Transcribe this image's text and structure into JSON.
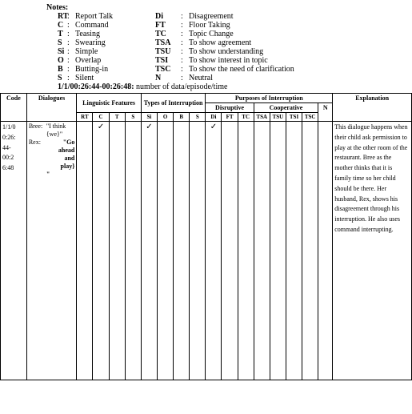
{
  "notes": {
    "title": "Notes:",
    "rows": [
      {
        "k1": "RT",
        "v1": "Report Talk",
        "k2": "Di",
        "v2": "Disagreement"
      },
      {
        "k1": "C",
        "v1": "Command",
        "k2": "FT",
        "v2": "Floor Taking"
      },
      {
        "k1": "T",
        "v1": "Teasing",
        "k2": "TC",
        "v2": "Topic Change"
      },
      {
        "k1": "S",
        "v1": "Swearing",
        "k2": "TSA",
        "v2": "To show agreement"
      },
      {
        "k1": "Si",
        "v1": "Simple",
        "k2": "TSU",
        "v2": "To show understanding"
      },
      {
        "k1": "O",
        "v1": "Overlap",
        "k2": "TSI",
        "v2": "To show interest in topic"
      },
      {
        "k1": "B",
        "v1": "Butting-in",
        "k2": "TSC",
        "v2": "To show the need of clarification"
      },
      {
        "k1": "S",
        "v1": "Silent",
        "k2": "N",
        "v2": "Neutral"
      }
    ],
    "seq_code": "1/1/00:26:44-00:26:48:",
    "seq_desc": " number of data/episode/time"
  },
  "headers": {
    "code": "Code",
    "dialogues": "Dialogues",
    "ling": "Linguistic Features",
    "types": "Types of Interruption",
    "purposes": "Purposes of Interruption",
    "explanation": "Explanation",
    "disruptive": "Disruptive",
    "cooperative": "Cooperative",
    "n": "N",
    "cols": {
      "rt": "RT",
      "c": "C",
      "t": "T",
      "s": "S",
      "si": "Si",
      "o": "O",
      "b": "B",
      "s2": "S",
      "di": "Di",
      "ft": "FT",
      "tc": "TC",
      "tsa": "TSA",
      "tsu": "TSU",
      "tsi": "TSI",
      "tsc": "TSC"
    }
  },
  "check_glyph": "✓",
  "row": {
    "code": "1/1/0\n0:26:\n44-\n00:2\n6:48",
    "dialogue": {
      "bree_name": "Bree:",
      "bree_text": "\"I think {we}\"",
      "rex_name": "Rex:",
      "rex_text": "\"Go",
      "rex_cont1": "ahead",
      "rex_cont2": "and",
      "rex_cont3": "play}",
      "rex_end": "\""
    },
    "marks": {
      "rt": "",
      "c": "✓",
      "t": "",
      "s": "",
      "si": "✓",
      "o": "",
      "b": "",
      "s2": "",
      "di": "✓",
      "ft": "",
      "tc": "",
      "tsa": "",
      "tsu": "",
      "tsi": "",
      "tsc": "",
      "n": ""
    },
    "explanation": "This dialogue happens when their child ask permission to play at the other room of the restaurant. Bree as the mother thinks that it is family time so her child should be there. Her husband, Rex, shows his disagreement through his interruption. He also uses command interrupting."
  }
}
